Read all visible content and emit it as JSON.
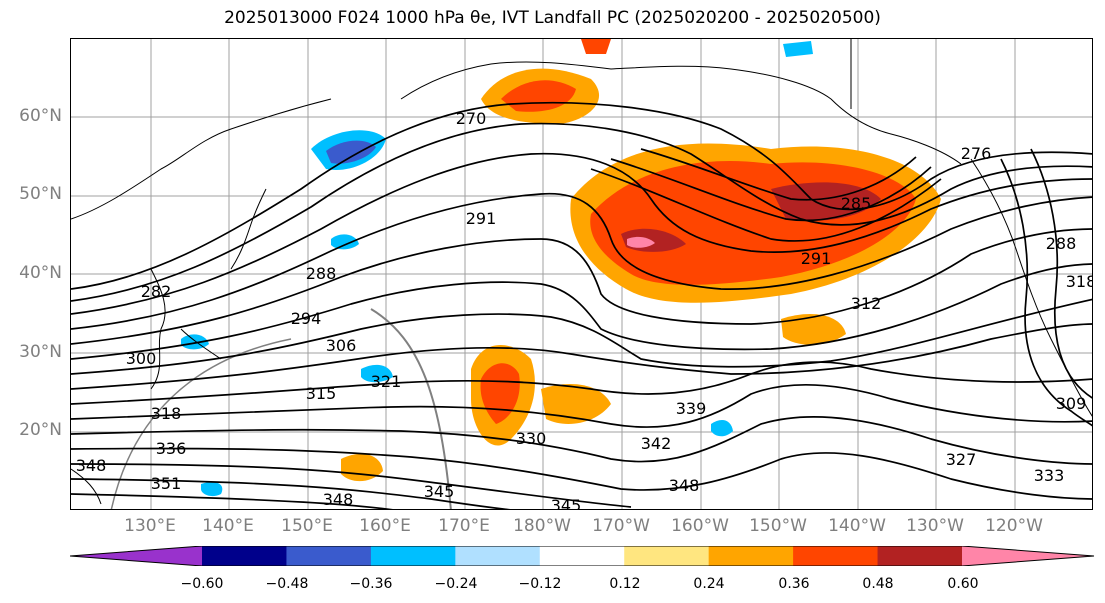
{
  "title": "2025013000 F024 1000 hPa θe, IVT Landfall PC (2025020200 - 2025020500)",
  "map": {
    "latitude_labels": [
      "60°N",
      "50°N",
      "40°N",
      "30°N",
      "20°N"
    ],
    "longitude_labels": [
      "130°E",
      "140°E",
      "150°E",
      "160°E",
      "170°E",
      "180°W",
      "170°W",
      "160°W",
      "150°W",
      "140°W",
      "130°W",
      "120°W"
    ],
    "contour_labels": [
      "270",
      "276",
      "282",
      "285",
      "288",
      "291",
      "291",
      "294",
      "300",
      "306",
      "309",
      "312",
      "315",
      "318",
      "321",
      "327",
      "330",
      "333",
      "336",
      "339",
      "342",
      "345",
      "345",
      "348",
      "348",
      "348",
      "351",
      "318",
      "288"
    ],
    "colors": {
      "coast": "#000000",
      "grid": "#a0a0a0",
      "frame": "#000000"
    }
  },
  "colorbar": {
    "ticks": [
      "−0.60",
      "−0.48",
      "−0.36",
      "−0.24",
      "−0.12",
      "0.12",
      "0.24",
      "0.36",
      "0.48",
      "0.60"
    ],
    "bins": [
      {
        "color": "#9932cc"
      },
      {
        "color": "#00008b"
      },
      {
        "color": "#3a5bcd"
      },
      {
        "color": "#00bfff"
      },
      {
        "color": "#b0e0ff"
      },
      {
        "color": "#ffffff"
      },
      {
        "color": "#ffe680"
      },
      {
        "color": "#ffa500"
      },
      {
        "color": "#ff4500"
      },
      {
        "color": "#b22222"
      },
      {
        "color": "#ff85a8"
      }
    ]
  }
}
